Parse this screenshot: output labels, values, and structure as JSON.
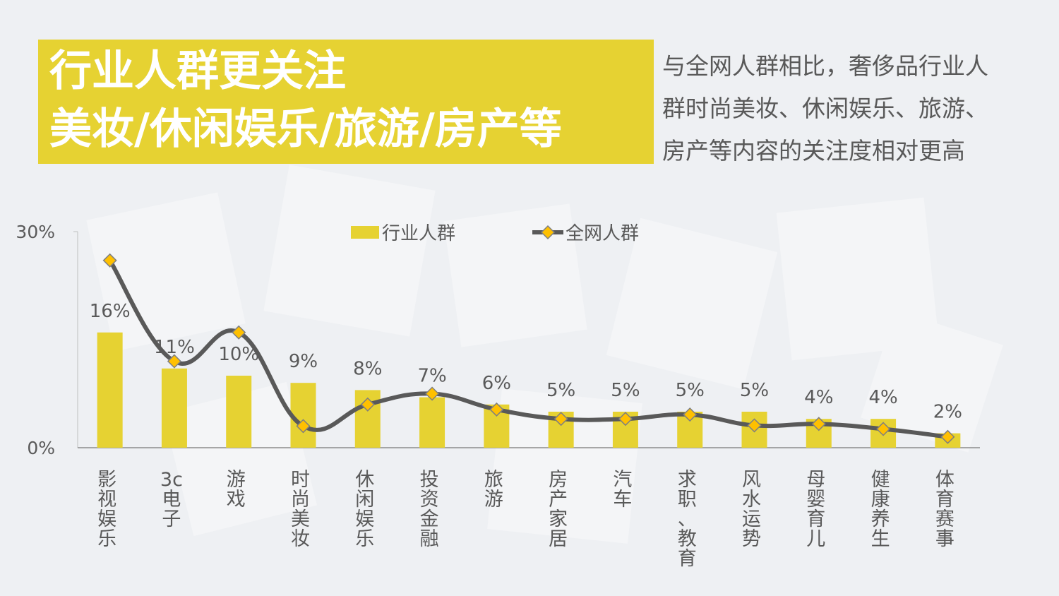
{
  "header": {
    "title_line1": "行业人群更关注",
    "title_line2": "美妆/休闲娱乐/旅游/房产等",
    "description_lines": [
      "与全网人群相比，奢侈品行业人",
      "群时尚美妆、休闲娱乐、旅游、",
      "房产等内容的关注度相对更高"
    ]
  },
  "colors": {
    "bar": "#e6d232",
    "line": "#595959",
    "marker": "#ffc000",
    "text": "#595959",
    "title_bg": "#e6d232"
  },
  "chart_data": {
    "type": "bar",
    "categories": [
      "影视娱乐",
      "3c电子",
      "游戏",
      "时尚美妆",
      "休闲娱乐",
      "投资金融",
      "旅游",
      "房产家居",
      "汽车",
      "求职、教育",
      "风水运势",
      "母婴育儿",
      "健康养生",
      "体育赛事"
    ],
    "category_labels": [
      "影\n视\n娱\n乐",
      "3c\n电\n子",
      "游\n戏",
      "时\n尚\n美\n妆",
      "休\n闲\n娱\n乐",
      "投\n资\n金\n融",
      "旅\n游",
      "房\n产\n家\n居",
      "汽\n车",
      "求\n职\n、\n教\n育",
      "风\n水\n运\n势",
      "母\n婴\n育\n儿",
      "健\n康\n养\n生",
      "体\n育\n赛\n事"
    ],
    "series": [
      {
        "name": "行业人群",
        "type": "bar",
        "values": [
          16,
          11,
          10,
          9,
          8,
          7,
          6,
          5,
          5,
          5,
          5,
          4,
          4,
          2
        ]
      },
      {
        "name": "全网人群",
        "type": "line",
        "values": [
          26,
          12,
          16,
          3,
          6,
          7.5,
          5.3,
          4,
          4,
          4.6,
          3.1,
          3.3,
          2.6,
          1.5
        ]
      }
    ],
    "data_labels": [
      "16%",
      "11%",
      "10%",
      "9%",
      "8%",
      "7%",
      "6%",
      "5%",
      "5%",
      "5%",
      "5%",
      "4%",
      "4%",
      "2%"
    ],
    "y_ticks": [
      "0%",
      "30%"
    ],
    "ylim": [
      0,
      30
    ],
    "legend_position": "top",
    "title": "",
    "xlabel": "",
    "ylabel": ""
  }
}
